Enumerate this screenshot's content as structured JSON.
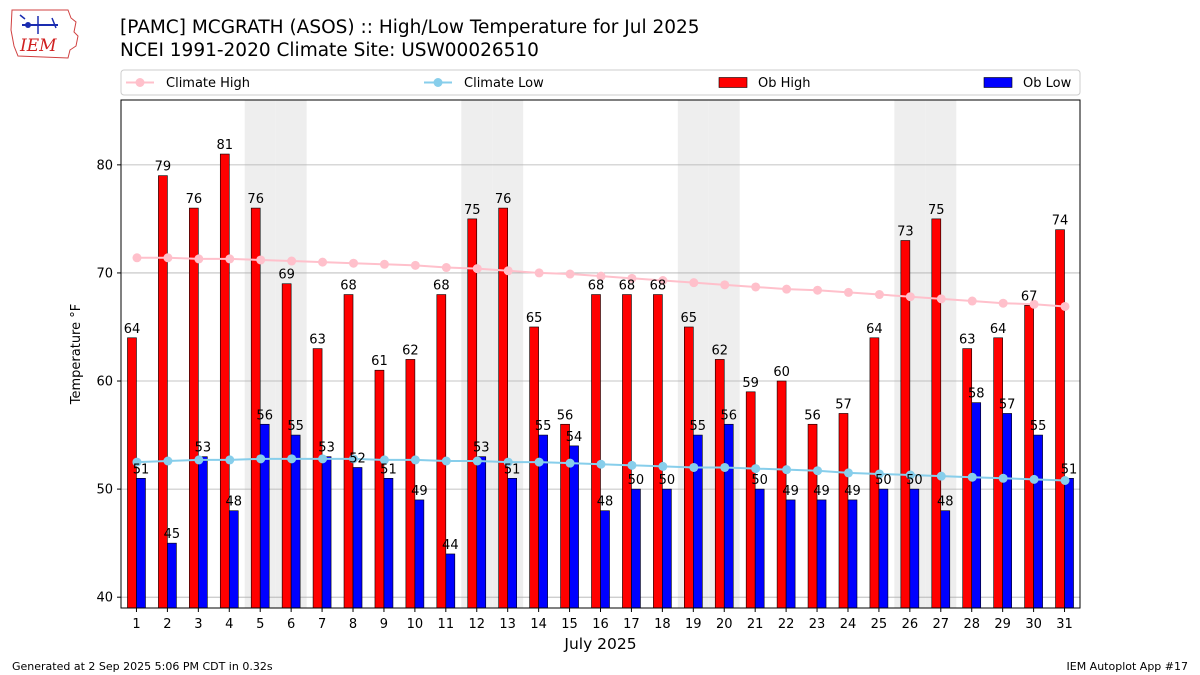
{
  "header": {
    "logo_text": "IEM",
    "title_line1": "[PAMC] MCGRATH (ASOS) :: High/Low Temperature for Jul 2025",
    "title_line2": "NCEI 1991-2020 Climate Site: USW00026510"
  },
  "footer": {
    "left": "Generated at 2 Sep 2025 5:06 PM CDT in 0.32s",
    "right": "IEM Autoplot App #17"
  },
  "colors": {
    "ob_high": "#ff0000",
    "ob_low": "#0000ff",
    "climate_high": "#ffc0cb",
    "climate_low": "#87ceeb",
    "weekend_shade": "#eeeeee",
    "grid": "#b0b0b0"
  },
  "chart_data": {
    "type": "bar",
    "xlabel": "July 2025",
    "ylabel": "Temperature °F",
    "ylim": [
      39,
      86
    ],
    "yticks": [
      40,
      50,
      60,
      70,
      80
    ],
    "grid": "horizontal",
    "legend_position": "top",
    "categories": [
      "1",
      "2",
      "3",
      "4",
      "5",
      "6",
      "7",
      "8",
      "9",
      "10",
      "11",
      "12",
      "13",
      "14",
      "15",
      "16",
      "17",
      "18",
      "19",
      "20",
      "21",
      "22",
      "23",
      "24",
      "25",
      "26",
      "27",
      "28",
      "29",
      "30",
      "31"
    ],
    "shaded_days": [
      5,
      6,
      12,
      13,
      19,
      20,
      26,
      27
    ],
    "series": [
      {
        "name": "Ob High",
        "kind": "bar",
        "values": [
          64,
          79,
          76,
          81,
          76,
          69,
          63,
          68,
          61,
          62,
          68,
          75,
          76,
          65,
          56,
          68,
          68,
          68,
          65,
          62,
          59,
          60,
          56,
          57,
          64,
          73,
          75,
          63,
          64,
          67,
          74
        ]
      },
      {
        "name": "Ob Low",
        "kind": "bar",
        "values": [
          51,
          45,
          53,
          48,
          56,
          55,
          53,
          52,
          51,
          49,
          44,
          53,
          51,
          55,
          54,
          48,
          50,
          50,
          55,
          56,
          50,
          49,
          49,
          49,
          50,
          50,
          48,
          58,
          57,
          55,
          51
        ]
      },
      {
        "name": "Climate High",
        "kind": "line",
        "values": [
          71.4,
          71.4,
          71.3,
          71.3,
          71.2,
          71.1,
          71.0,
          70.9,
          70.8,
          70.7,
          70.5,
          70.4,
          70.2,
          70.0,
          69.9,
          69.7,
          69.5,
          69.3,
          69.1,
          68.9,
          68.7,
          68.5,
          68.4,
          68.2,
          68.0,
          67.8,
          67.6,
          67.4,
          67.2,
          67.1,
          66.9
        ]
      },
      {
        "name": "Climate Low",
        "kind": "line",
        "values": [
          52.5,
          52.6,
          52.7,
          52.7,
          52.8,
          52.8,
          52.8,
          52.8,
          52.7,
          52.7,
          52.6,
          52.6,
          52.5,
          52.5,
          52.4,
          52.3,
          52.2,
          52.1,
          52.0,
          52.0,
          51.9,
          51.8,
          51.7,
          51.5,
          51.4,
          51.3,
          51.2,
          51.1,
          51.0,
          50.9,
          50.8
        ]
      }
    ]
  }
}
